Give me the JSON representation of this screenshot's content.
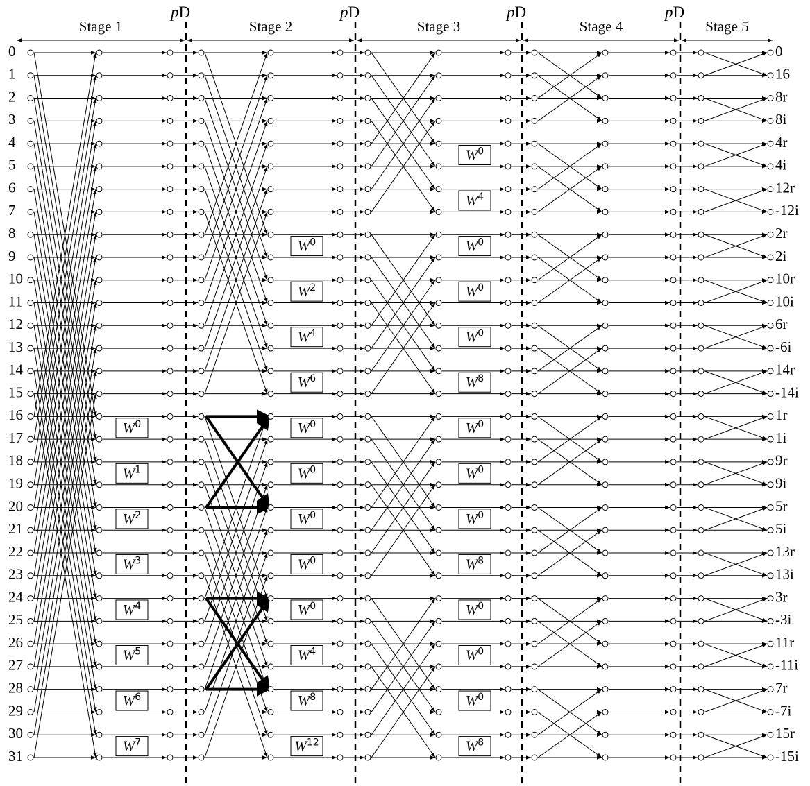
{
  "stages": [
    "Stage 1",
    "Stage 2",
    "Stage 3",
    "Stage 4",
    "Stage 5"
  ],
  "delays": [
    {
      "var": "p",
      "unit": "D"
    },
    {
      "var": "p",
      "unit": "D"
    },
    {
      "var": "p",
      "unit": "D"
    },
    {
      "var": "p",
      "unit": "D"
    }
  ],
  "inputs": [
    "0",
    "1",
    "2",
    "3",
    "4",
    "5",
    "6",
    "7",
    "8",
    "9",
    "10",
    "11",
    "12",
    "13",
    "14",
    "15",
    "16",
    "17",
    "18",
    "19",
    "20",
    "21",
    "22",
    "23",
    "24",
    "25",
    "26",
    "27",
    "28",
    "29",
    "30",
    "31"
  ],
  "outputs": [
    "0",
    "16",
    "8r",
    "8i",
    "4r",
    "4i",
    "12r",
    "-12i",
    "2r",
    "2i",
    "10r",
    "10i",
    "6r",
    "-6i",
    "14r",
    "-14i",
    "1r",
    "1i",
    "9r",
    "9i",
    "5r",
    "5i",
    "13r",
    "13i",
    "3r",
    "-3i",
    "11r",
    "-11i",
    "7r",
    "-7i",
    "15r",
    "-15i"
  ],
  "twiddles": [
    [
      {
        "base": "W",
        "exp": "0"
      },
      {
        "base": "W",
        "exp": "1"
      },
      {
        "base": "W",
        "exp": "2"
      },
      {
        "base": "W",
        "exp": "3"
      },
      {
        "base": "W",
        "exp": "4"
      },
      {
        "base": "W",
        "exp": "5"
      },
      {
        "base": "W",
        "exp": "6"
      },
      {
        "base": "W",
        "exp": "7"
      }
    ],
    [
      {
        "base": "W",
        "exp": "0"
      },
      {
        "base": "W",
        "exp": "2"
      },
      {
        "base": "W",
        "exp": "4"
      },
      {
        "base": "W",
        "exp": "6"
      },
      {
        "base": "W",
        "exp": "0"
      },
      {
        "base": "W",
        "exp": "0"
      },
      {
        "base": "W",
        "exp": "0"
      },
      {
        "base": "W",
        "exp": "0"
      },
      {
        "base": "W",
        "exp": "0"
      },
      {
        "base": "W",
        "exp": "4"
      },
      {
        "base": "W",
        "exp": "8"
      },
      {
        "base": "W",
        "exp": "12"
      }
    ],
    [
      {
        "base": "W",
        "exp": "0"
      },
      {
        "base": "W",
        "exp": "4"
      },
      {
        "base": "W",
        "exp": "0"
      },
      {
        "base": "W",
        "exp": "0"
      },
      {
        "base": "W",
        "exp": "0"
      },
      {
        "base": "W",
        "exp": "8"
      },
      {
        "base": "W",
        "exp": "0"
      },
      {
        "base": "W",
        "exp": "0"
      },
      {
        "base": "W",
        "exp": "0"
      },
      {
        "base": "W",
        "exp": "8"
      },
      {
        "base": "W",
        "exp": "0"
      },
      {
        "base": "W",
        "exp": "0"
      },
      {
        "base": "W",
        "exp": "0"
      },
      {
        "base": "W",
        "exp": "8"
      }
    ]
  ]
}
